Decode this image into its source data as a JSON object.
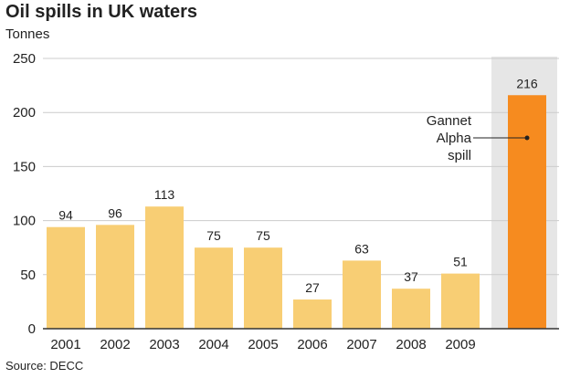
{
  "chart_data": {
    "type": "bar",
    "title": "Oil spills in UK waters",
    "ylabel": "Tonnes",
    "source": "Source: DECC",
    "categories": [
      "2001",
      "2002",
      "2003",
      "2004",
      "2005",
      "2006",
      "2007",
      "2008",
      "2009",
      ""
    ],
    "values": [
      94,
      96,
      113,
      75,
      75,
      27,
      63,
      37,
      51,
      216
    ],
    "ylim": [
      0,
      250
    ],
    "yticks": [
      0,
      50,
      100,
      150,
      200,
      250
    ],
    "grid": true,
    "annotations": [
      {
        "label_lines": [
          "Gannet",
          "Alpha",
          "spill"
        ],
        "target_index": 9
      }
    ],
    "colors": {
      "bar": "#f8ce74",
      "highlight_bar": "#f68b1f",
      "highlight_background": "#e6e6e6",
      "grid": "#cccccc",
      "axis": "#333333"
    }
  }
}
